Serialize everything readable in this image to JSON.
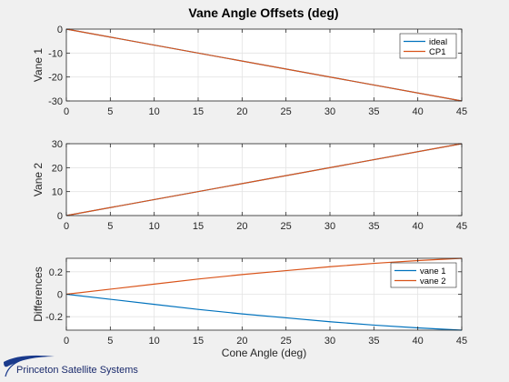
{
  "figure": {
    "title": "Vane Angle Offsets (deg)",
    "background": "#f0f0f0",
    "grid": true
  },
  "logo": {
    "text": "Princeton Satellite Systems",
    "color": "#1a3a8c"
  },
  "colors": {
    "blue": "#0072bd",
    "orange": "#d95319"
  },
  "chart_data": [
    {
      "type": "line",
      "ylabel": "Vane 1",
      "xlim": [
        0,
        45
      ],
      "ylim": [
        -30,
        0
      ],
      "xticks": [
        0,
        5,
        10,
        15,
        20,
        25,
        30,
        35,
        40,
        45
      ],
      "yticks": [
        -30,
        -20,
        -10,
        0
      ],
      "legend": "top-right",
      "series": [
        {
          "name": "ideal",
          "color": "#0072bd",
          "x": [
            0,
            45
          ],
          "y": [
            0,
            -30
          ]
        },
        {
          "name": "CP1",
          "color": "#d95319",
          "x": [
            0,
            45
          ],
          "y": [
            0,
            -30
          ]
        }
      ]
    },
    {
      "type": "line",
      "ylabel": "Vane 2",
      "xlim": [
        0,
        45
      ],
      "ylim": [
        0,
        30
      ],
      "xticks": [
        0,
        5,
        10,
        15,
        20,
        25,
        30,
        35,
        40,
        45
      ],
      "yticks": [
        0,
        10,
        20,
        30
      ],
      "series": [
        {
          "color": "#0072bd",
          "x": [
            0,
            45
          ],
          "y": [
            0,
            30
          ]
        },
        {
          "color": "#d95319",
          "x": [
            0,
            45
          ],
          "y": [
            0,
            30
          ]
        }
      ]
    },
    {
      "type": "line",
      "xlabel": "Cone Angle (deg)",
      "ylabel": "Differences",
      "xlim": [
        0,
        45
      ],
      "ylim": [
        -0.32,
        0.32
      ],
      "xticks": [
        0,
        5,
        10,
        15,
        20,
        25,
        30,
        35,
        40,
        45
      ],
      "yticks": [
        -0.2,
        0,
        0.2
      ],
      "legend": "top-right",
      "series": [
        {
          "name": "vane 1",
          "color": "#0072bd",
          "x": [
            0,
            5,
            10,
            15,
            20,
            25,
            30,
            35,
            40,
            45
          ],
          "y": [
            0,
            -0.045,
            -0.09,
            -0.135,
            -0.175,
            -0.21,
            -0.245,
            -0.275,
            -0.3,
            -0.32
          ]
        },
        {
          "name": "vane 2",
          "color": "#d95319",
          "x": [
            0,
            5,
            10,
            15,
            20,
            25,
            30,
            35,
            40,
            45
          ],
          "y": [
            0,
            0.045,
            0.09,
            0.135,
            0.175,
            0.21,
            0.245,
            0.275,
            0.3,
            0.32
          ]
        }
      ]
    }
  ]
}
